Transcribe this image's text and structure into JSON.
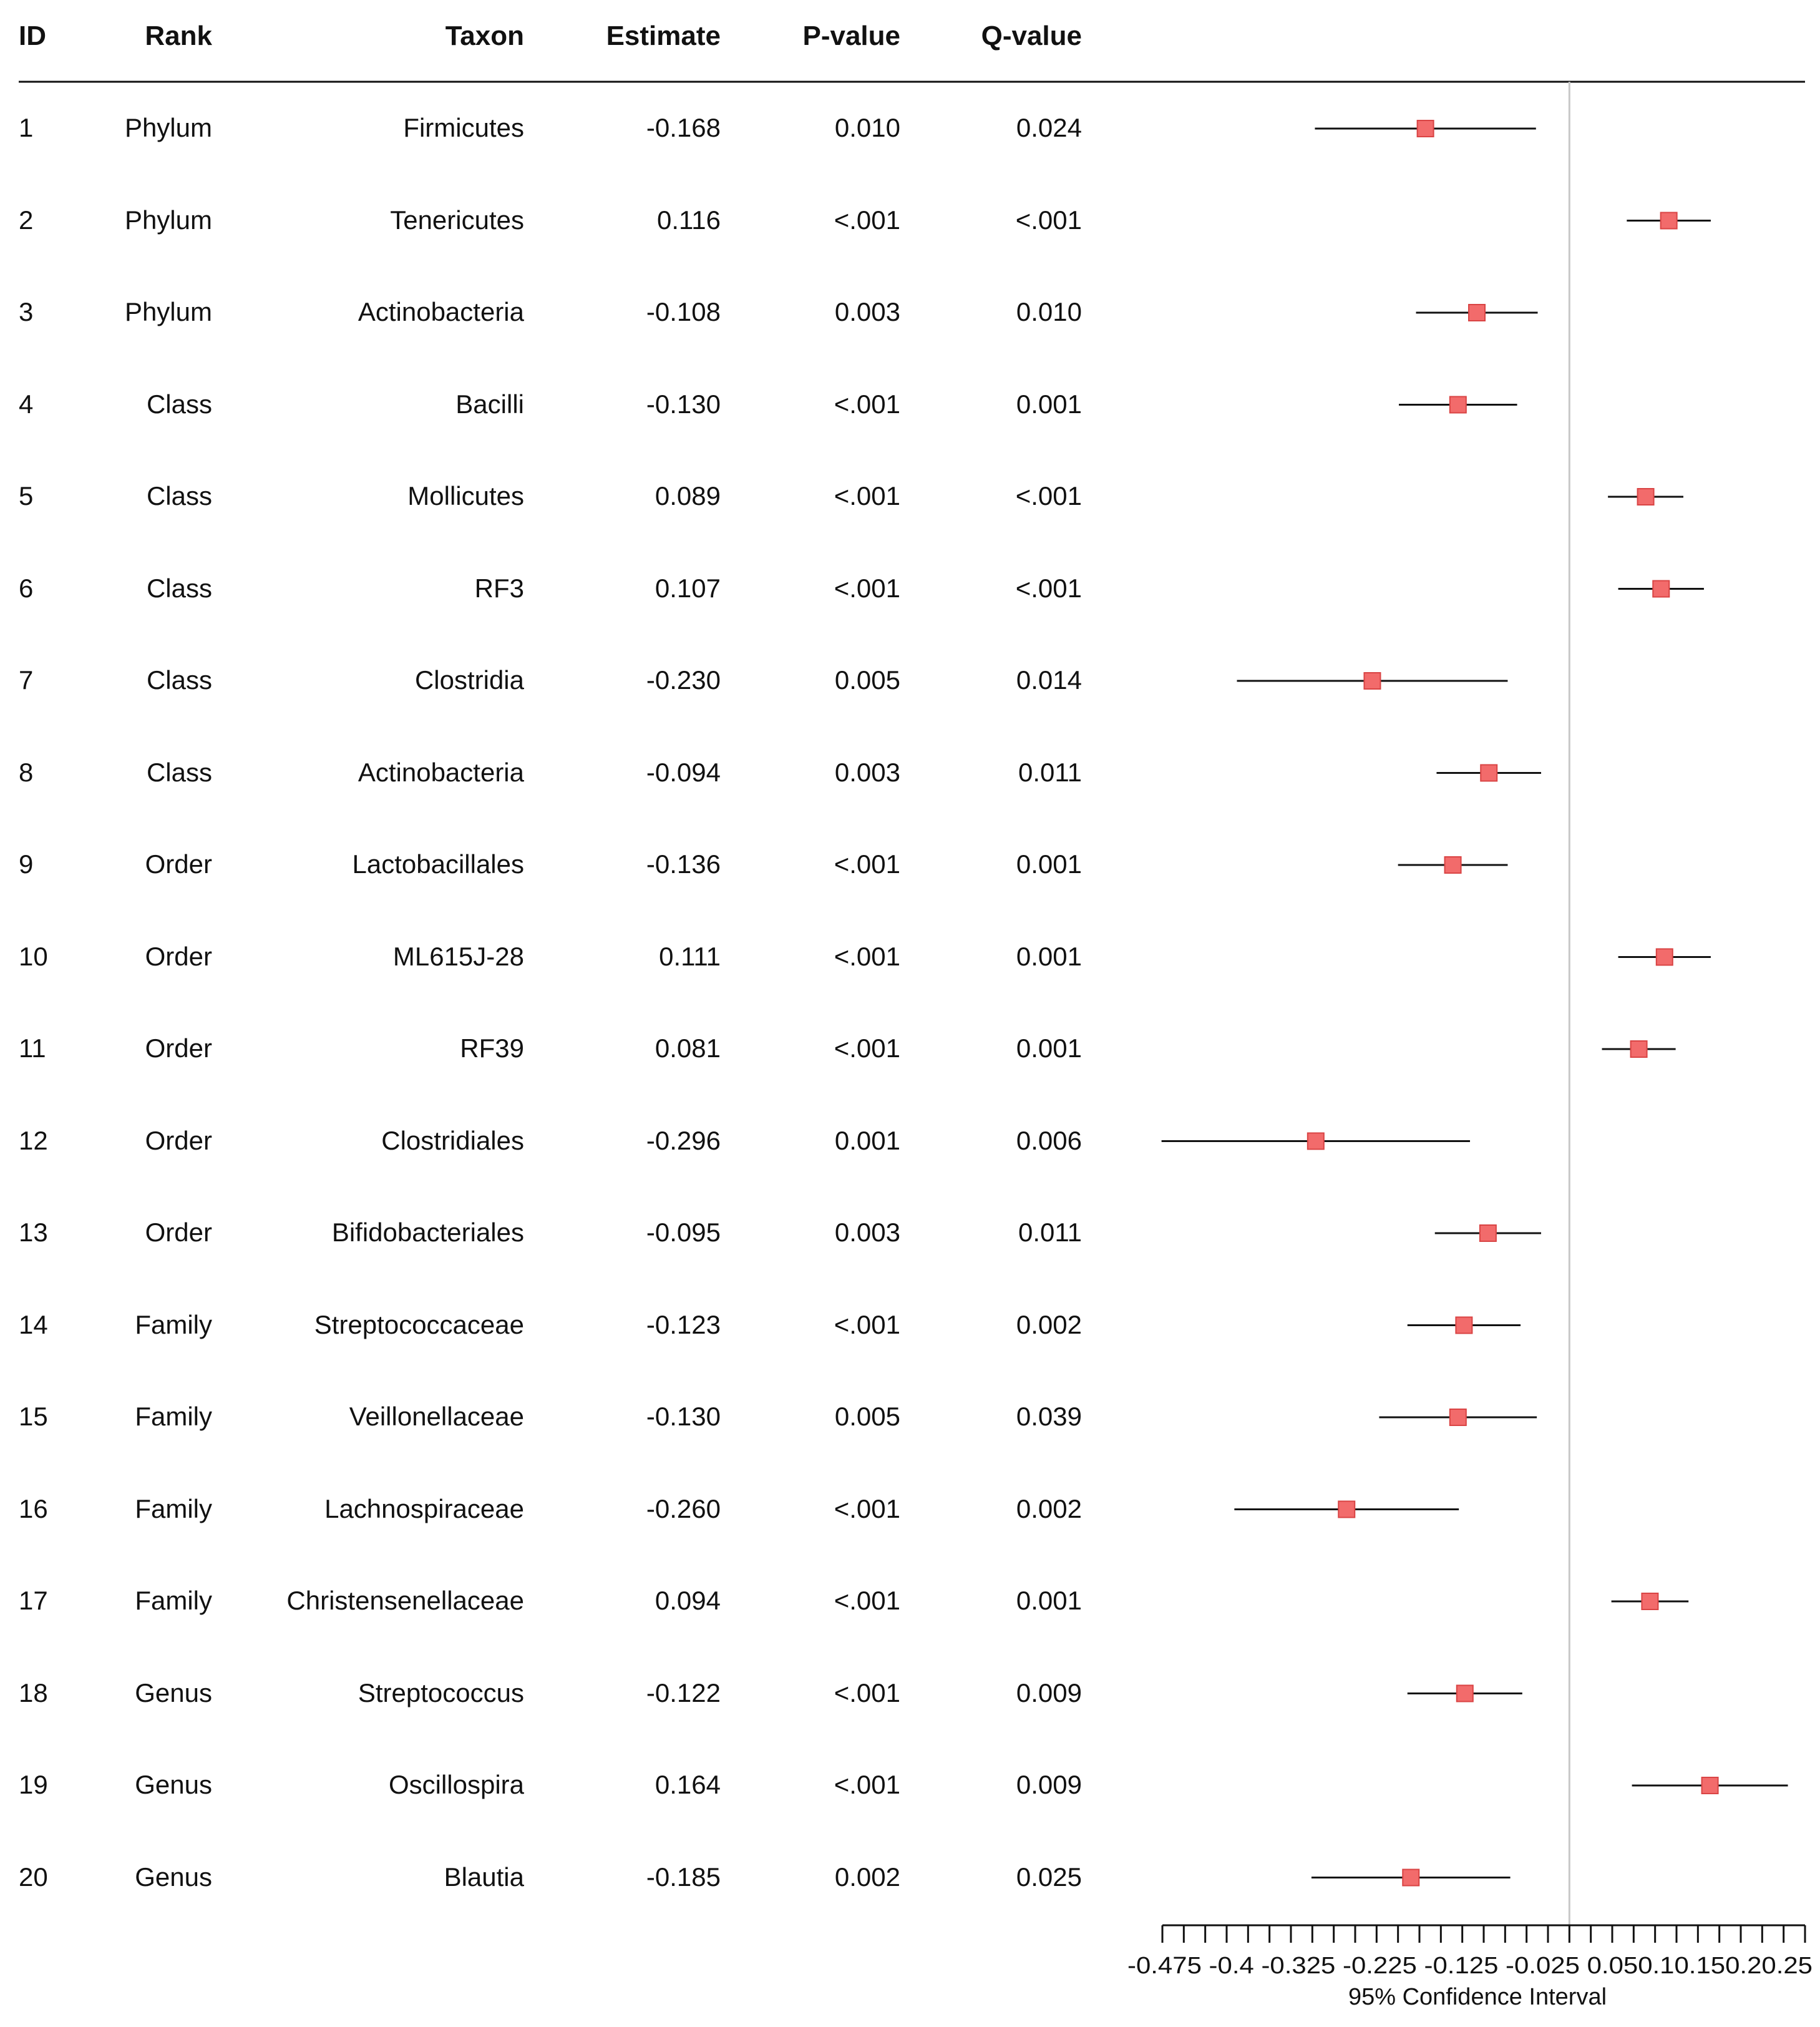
{
  "table": {
    "columns": [
      "ID",
      "Rank",
      "Taxon",
      "Estimate",
      "P-value",
      "Q-value"
    ]
  },
  "chart_data": {
    "type": "forest",
    "xlabel": "95% Confidence Interval",
    "xlim": [
      -0.475,
      0.275
    ],
    "reference_line": 0,
    "tick_labels": [
      "-0.475",
      "-0.4",
      "-0.325",
      "-0.225",
      "-0.125",
      "-0.025",
      "0.05",
      "0.1",
      "0.15",
      "0.2",
      "0.25"
    ],
    "tick_label_values": [
      -0.475,
      -0.4,
      -0.325,
      -0.225,
      -0.125,
      -0.025,
      0.05,
      0.1,
      0.15,
      0.2,
      0.25
    ],
    "tick_label_text": "-0.475 -0.4 -0.325 -0.225 -0.125 -0.025 0.050.10.150.20.25",
    "minor_tick_step": 0.025,
    "marker_color": "#f26b6b",
    "marker_edge": "#d94444",
    "rows": [
      {
        "id": "1",
        "rank": "Phylum",
        "taxon": "Firmicutes",
        "estimate": "-0.168",
        "p": "0.010",
        "q": "0.024",
        "est": -0.168,
        "lo": -0.297,
        "hi": -0.039
      },
      {
        "id": "2",
        "rank": "Phylum",
        "taxon": "Tenericutes",
        "estimate": "0.116",
        "p": "<.001",
        "q": "<.001",
        "est": 0.116,
        "lo": 0.067,
        "hi": 0.165
      },
      {
        "id": "3",
        "rank": "Phylum",
        "taxon": "Actinobacteria",
        "estimate": "-0.108",
        "p": "0.003",
        "q": "0.010",
        "est": -0.108,
        "lo": -0.179,
        "hi": -0.037
      },
      {
        "id": "4",
        "rank": "Class",
        "taxon": "Bacilli",
        "estimate": "-0.130",
        "p": "<.001",
        "q": "0.001",
        "est": -0.13,
        "lo": -0.199,
        "hi": -0.061
      },
      {
        "id": "5",
        "rank": "Class",
        "taxon": "Mollicutes",
        "estimate": "0.089",
        "p": "<.001",
        "q": "<.001",
        "est": 0.089,
        "lo": 0.045,
        "hi": 0.133
      },
      {
        "id": "6",
        "rank": "Class",
        "taxon": "RF3",
        "estimate": "0.107",
        "p": "<.001",
        "q": "<.001",
        "est": 0.107,
        "lo": 0.057,
        "hi": 0.157
      },
      {
        "id": "7",
        "rank": "Class",
        "taxon": "Clostridia",
        "estimate": "-0.230",
        "p": "0.005",
        "q": "0.014",
        "est": -0.23,
        "lo": -0.388,
        "hi": -0.072
      },
      {
        "id": "8",
        "rank": "Class",
        "taxon": "Actinobacteria",
        "estimate": "-0.094",
        "p": "0.003",
        "q": "0.011",
        "est": -0.094,
        "lo": -0.155,
        "hi": -0.033
      },
      {
        "id": "9",
        "rank": "Order",
        "taxon": "Lactobacillales",
        "estimate": "-0.136",
        "p": "<.001",
        "q": "0.001",
        "est": -0.136,
        "lo": -0.2,
        "hi": -0.072
      },
      {
        "id": "10",
        "rank": "Order",
        "taxon": "ML615J-28",
        "estimate": "0.111",
        "p": "<.001",
        "q": "0.001",
        "est": 0.111,
        "lo": 0.057,
        "hi": 0.165
      },
      {
        "id": "11",
        "rank": "Order",
        "taxon": "RF39",
        "estimate": "0.081",
        "p": "<.001",
        "q": "0.001",
        "est": 0.081,
        "lo": 0.038,
        "hi": 0.124
      },
      {
        "id": "12",
        "rank": "Order",
        "taxon": "Clostridiales",
        "estimate": "-0.296",
        "p": "0.001",
        "q": "0.006",
        "est": -0.296,
        "lo": -0.476,
        "hi": -0.116
      },
      {
        "id": "13",
        "rank": "Order",
        "taxon": "Bifidobacteriales",
        "estimate": "-0.095",
        "p": "0.003",
        "q": "0.011",
        "est": -0.095,
        "lo": -0.157,
        "hi": -0.033
      },
      {
        "id": "14",
        "rank": "Family",
        "taxon": "Streptococcaceae",
        "estimate": "-0.123",
        "p": "<.001",
        "q": "0.002",
        "est": -0.123,
        "lo": -0.189,
        "hi": -0.057
      },
      {
        "id": "15",
        "rank": "Family",
        "taxon": "Veillonellaceae",
        "estimate": "-0.130",
        "p": "0.005",
        "q": "0.039",
        "est": -0.13,
        "lo": -0.222,
        "hi": -0.038
      },
      {
        "id": "16",
        "rank": "Family",
        "taxon": "Lachnospiraceae",
        "estimate": "-0.260",
        "p": "<.001",
        "q": "0.002",
        "est": -0.26,
        "lo": -0.391,
        "hi": -0.129
      },
      {
        "id": "17",
        "rank": "Family",
        "taxon": "Christensenellaceae",
        "estimate": "0.094",
        "p": "<.001",
        "q": "0.001",
        "est": 0.094,
        "lo": 0.049,
        "hi": 0.139
      },
      {
        "id": "18",
        "rank": "Genus",
        "taxon": "Streptococcus",
        "estimate": "-0.122",
        "p": "<.001",
        "q": "0.009",
        "est": -0.122,
        "lo": -0.189,
        "hi": -0.055
      },
      {
        "id": "19",
        "rank": "Genus",
        "taxon": "Oscillospira",
        "estimate": "0.164",
        "p": "<.001",
        "q": "0.009",
        "est": 0.164,
        "lo": 0.073,
        "hi": 0.255
      },
      {
        "id": "20",
        "rank": "Genus",
        "taxon": "Blautia",
        "estimate": "-0.185",
        "p": "0.002",
        "q": "0.025",
        "est": -0.185,
        "lo": -0.301,
        "hi": -0.069
      }
    ]
  }
}
